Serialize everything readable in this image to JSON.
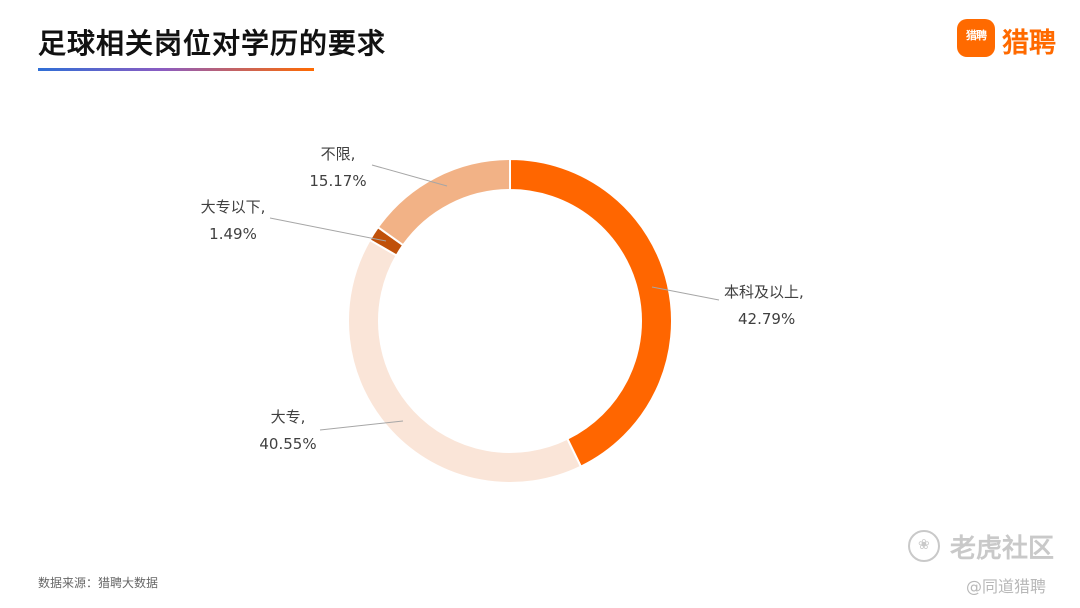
{
  "header": {
    "title": "足球相关岗位对学历的要求",
    "logo_badge": "猎聘",
    "logo_text": "猎聘"
  },
  "chart_data": {
    "type": "donut",
    "start": "top",
    "direction": "clockwise",
    "slices": [
      {
        "label": "本科及以上,",
        "value": 42.79,
        "value_text": "42.79%",
        "color": "#ff6600"
      },
      {
        "label": "大专,",
        "value": 40.55,
        "value_text": "40.55%",
        "color": "#fae5d8"
      },
      {
        "label": "大专以下,",
        "value": 1.49,
        "value_text": "1.49%",
        "color": "#c0510a"
      },
      {
        "label": "不限,",
        "value": 15.17,
        "value_text": "15.17%",
        "color": "#f2b286"
      }
    ]
  },
  "footer": {
    "source": "数据来源：猎聘大数据"
  },
  "watermark": {
    "main": "老虎社区",
    "sub": "@同道猎聘",
    "icon": "tiger-paw-icon"
  }
}
